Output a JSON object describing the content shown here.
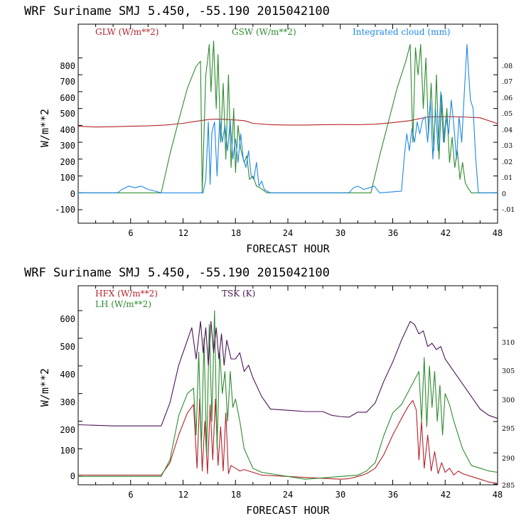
{
  "chart_data": [
    {
      "type": "line",
      "title": "WRF   Suriname SMJ   5.450, -55.190  2015042100",
      "xlabel": "FORECAST HOUR",
      "ylabel": "W/m**2",
      "xlim": [
        0,
        48
      ],
      "ylim": [
        -180,
        1000
      ],
      "y2lim": [
        -0.018,
        0.1
      ],
      "xticks": [
        "6",
        "12",
        "18",
        "24",
        "30",
        "36",
        "42",
        "48"
      ],
      "yticks": [
        "800",
        "700",
        "600",
        "500",
        "400",
        "300",
        "200",
        "100",
        "0",
        "-100"
      ],
      "y2ticks": [
        ".08",
        ".07",
        ".06",
        ".05",
        ".04",
        ".03",
        ".02",
        ".01",
        "0",
        "-.01"
      ],
      "legend": {
        "glw": "GLW (W/m**2)",
        "gsw": "GSW (W/m**2)",
        "cloud": "Integrated cloud (mm)"
      },
      "colors": {
        "glw": "#b4232a",
        "gsw": "#2e8b2e",
        "cloud": "#1e88e5"
      },
      "series": [
        {
          "name": "GLW (W/m**2)",
          "axis": "left",
          "color": "#b4232a",
          "x": [
            0,
            2,
            4,
            6,
            8,
            10,
            12,
            13,
            14,
            15,
            16,
            17,
            18,
            19,
            20,
            22,
            24,
            26,
            28,
            30,
            32,
            34,
            36,
            38,
            40,
            42,
            44,
            46,
            48
          ],
          "y": [
            395,
            390,
            392,
            395,
            397,
            402,
            412,
            420,
            428,
            435,
            437,
            435,
            432,
            428,
            412,
            404,
            402,
            402,
            404,
            405,
            404,
            407,
            416,
            428,
            450,
            452,
            450,
            445,
            410
          ]
        },
        {
          "name": "GSW (W/m**2)",
          "axis": "left",
          "color": "#2e8b2e",
          "x": [
            0,
            9.5,
            10.5,
            11.5,
            12.5,
            13.5,
            14,
            14.2,
            14.6,
            14.8,
            15,
            15.2,
            15.5,
            15.8,
            16,
            16.3,
            16.6,
            16.9,
            17.2,
            17.5,
            17.8,
            18,
            18.3,
            18.6,
            19,
            19.3,
            19.6,
            20,
            20.4,
            20.8,
            21.2,
            21.6,
            22,
            33.5,
            34.5,
            35.5,
            36.5,
            37.5,
            38,
            38.3,
            38.6,
            38.9,
            39.2,
            39.5,
            39.8,
            40.1,
            40.4,
            40.7,
            41,
            41.3,
            41.6,
            41.9,
            42.2,
            42.5,
            42.8,
            43.1,
            43.4,
            43.7,
            44,
            44.3,
            44.6,
            45,
            48
          ],
          "y": [
            0,
            0,
            230,
            430,
            620,
            750,
            780,
            0,
            700,
            780,
            880,
            600,
            900,
            500,
            820,
            300,
            650,
            200,
            700,
            150,
            500,
            120,
            400,
            260,
            180,
            220,
            80,
            100,
            40,
            30,
            15,
            0,
            0,
            0,
            220,
            420,
            620,
            780,
            880,
            300,
            860,
            700,
            880,
            500,
            800,
            350,
            650,
            250,
            700,
            200,
            580,
            300,
            500,
            180,
            330,
            150,
            250,
            80,
            180,
            60,
            30,
            0,
            0
          ]
        },
        {
          "name": "Integrated cloud (mm)",
          "axis": "right",
          "color": "#1e88e5",
          "x": [
            0,
            4.5,
            5,
            5.8,
            6.5,
            7.2,
            8,
            8.8,
            9.5,
            14.3,
            14.6,
            14.9,
            15.1,
            15.3,
            15.6,
            15.9,
            16.2,
            16.5,
            16.8,
            17.1,
            17.4,
            17.7,
            18,
            18.3,
            18.6,
            18.9,
            19.2,
            19.5,
            19.8,
            20.1,
            20.4,
            20.7,
            21,
            21.3,
            21.6,
            22,
            31,
            31.5,
            32,
            32.7,
            33.3,
            33.9,
            34.5,
            37,
            37.3,
            37.6,
            37.9,
            38.2,
            38.5,
            38.8,
            39.1,
            39.4,
            39.7,
            40,
            40.3,
            40.6,
            40.9,
            41.2,
            41.5,
            41.8,
            42.1,
            42.4,
            42.7,
            43,
            43.3,
            43.6,
            43.9,
            44.2,
            44.5,
            44.7,
            44.9,
            45.2,
            45.5,
            45.8,
            48
          ],
          "y": [
            0,
            0,
            0.002,
            0.004,
            0.003,
            0.004,
            0.002,
            0.001,
            0,
            0,
            0.008,
            0.042,
            0.005,
            0.036,
            0.042,
            0.01,
            0.044,
            0.03,
            0.04,
            0.025,
            0.043,
            0.02,
            0.032,
            0.018,
            0.035,
            0.02,
            0.015,
            0.025,
            0.01,
            0.008,
            0.018,
            0.004,
            0.007,
            0.002,
            0.001,
            0,
            0,
            0.003,
            0.004,
            0.002,
            0.003,
            0.004,
            0,
            0.001,
            0.02,
            0.035,
            0.025,
            0.038,
            0.03,
            0.042,
            0.035,
            0.043,
            0.045,
            0.03,
            0.055,
            0.02,
            0.05,
            0.025,
            0.06,
            0.03,
            0.045,
            0.035,
            0.055,
            0.04,
            0.02,
            0.045,
            0.03,
            0.06,
            0.088,
            0.07,
            0.055,
            0.05,
            0.02,
            0,
            0
          ]
        }
      ]
    },
    {
      "type": "line",
      "title": "WRF   Suriname SMJ   5.450, -55.190  2015042100",
      "xlabel": "FORECAST HOUR",
      "ylabel": "W/m**2",
      "xlim": [
        0,
        48
      ],
      "ylim": [
        -30,
        690
      ],
      "y2lim": [
        284.9,
        316.7
      ],
      "xticks": [
        "6",
        "12",
        "18",
        "24",
        "30",
        "36",
        "42",
        "48"
      ],
      "yticks": [
        "600",
        "500",
        "400",
        "300",
        "200",
        "100",
        "0"
      ],
      "y2ticks": [
        "310",
        "305",
        "300",
        "295",
        "290",
        "285"
      ],
      "legend": {
        "hfx": "HFX (W/m**2)",
        "lh": "LH  (W/m**2)",
        "tsk": "TSK (K)"
      },
      "colors": {
        "hfx": "#b4232a",
        "lh": "#2e8b2e",
        "tsk": "#4b1555"
      },
      "series": [
        {
          "name": "HFX (W/m**2)",
          "axis": "left",
          "color": "#b4232a",
          "x": [
            0,
            9.5,
            10.5,
            11.5,
            12.5,
            13.2,
            13.6,
            13.9,
            14.2,
            14.5,
            14.8,
            15.1,
            15.4,
            15.7,
            16,
            16.3,
            16.6,
            16.9,
            17.2,
            17.5,
            18,
            18.5,
            19,
            20,
            21,
            24,
            27,
            30,
            31,
            32,
            33,
            34,
            35,
            36,
            37,
            37.8,
            38.3,
            38.7,
            39,
            39.3,
            39.6,
            40,
            40.4,
            40.8,
            41.2,
            41.6,
            42,
            42.5,
            43,
            43.5,
            44,
            45,
            46,
            47,
            48
          ],
          "y": [
            5,
            5,
            50,
            150,
            230,
            260,
            30,
            280,
            20,
            200,
            10,
            260,
            60,
            280,
            40,
            180,
            20,
            230,
            10,
            40,
            30,
            20,
            25,
            15,
            5,
            0,
            -5,
            -10,
            -8,
            0,
            10,
            30,
            80,
            150,
            210,
            255,
            275,
            240,
            60,
            200,
            30,
            150,
            20,
            90,
            10,
            50,
            15,
            30,
            5,
            20,
            10,
            0,
            -10,
            -20,
            -25
          ]
        },
        {
          "name": "LH  (W/m**2)",
          "axis": "left",
          "color": "#2e8b2e",
          "x": [
            0,
            9.5,
            10.5,
            11.5,
            12.5,
            13.2,
            13.5,
            13.8,
            14.1,
            14.4,
            14.7,
            15,
            15.3,
            15.6,
            15.9,
            16.2,
            16.5,
            16.8,
            17.1,
            17.4,
            17.7,
            18,
            18.5,
            19,
            20,
            21,
            22,
            24,
            26,
            28,
            30,
            32,
            33,
            34,
            35,
            36,
            37,
            38,
            39,
            39.3,
            39.6,
            39.9,
            40.2,
            40.5,
            40.8,
            41.1,
            41.4,
            41.7,
            42,
            42.5,
            43,
            44,
            45,
            46,
            47,
            48
          ],
          "y": [
            0,
            0,
            60,
            220,
            300,
            320,
            150,
            450,
            100,
            500,
            80,
            550,
            200,
            600,
            100,
            450,
            300,
            380,
            200,
            380,
            250,
            280,
            200,
            100,
            30,
            15,
            10,
            0,
            -10,
            -5,
            0,
            5,
            20,
            50,
            150,
            230,
            260,
            320,
            380,
            200,
            430,
            180,
            400,
            250,
            380,
            200,
            330,
            150,
            300,
            260,
            200,
            100,
            40,
            30,
            20,
            15
          ]
        },
        {
          "name": "TSK (K)",
          "axis": "right",
          "color": "#4b1555",
          "x": [
            0,
            4,
            8,
            9.5,
            10.5,
            11.5,
            12.5,
            13,
            13.5,
            14,
            14.3,
            14.6,
            14.9,
            15.2,
            15.5,
            15.8,
            16.1,
            16.4,
            16.7,
            17,
            17.5,
            18,
            18.5,
            19,
            19.5,
            20,
            21,
            22,
            24,
            26,
            28,
            29,
            30,
            31,
            32,
            33,
            34,
            35,
            36,
            37,
            38,
            38.5,
            39,
            39.5,
            40,
            40.5,
            41,
            41.5,
            42,
            43,
            44,
            45,
            46,
            47,
            48
          ],
          "y": [
            294.5,
            294.3,
            294.3,
            294.3,
            298,
            304,
            308,
            310,
            305,
            311,
            306,
            310,
            304,
            311,
            306,
            310,
            305,
            309,
            304,
            308,
            305,
            305,
            306,
            303,
            304,
            302,
            299,
            297,
            296.8,
            296.6,
            296.6,
            296,
            295.8,
            295.7,
            296.5,
            296.5,
            298,
            301.5,
            304.5,
            308,
            311,
            310.5,
            309,
            309.5,
            307,
            307.5,
            306.5,
            307,
            305,
            303,
            301,
            299,
            297,
            296,
            295.5
          ]
        }
      ]
    }
  ]
}
